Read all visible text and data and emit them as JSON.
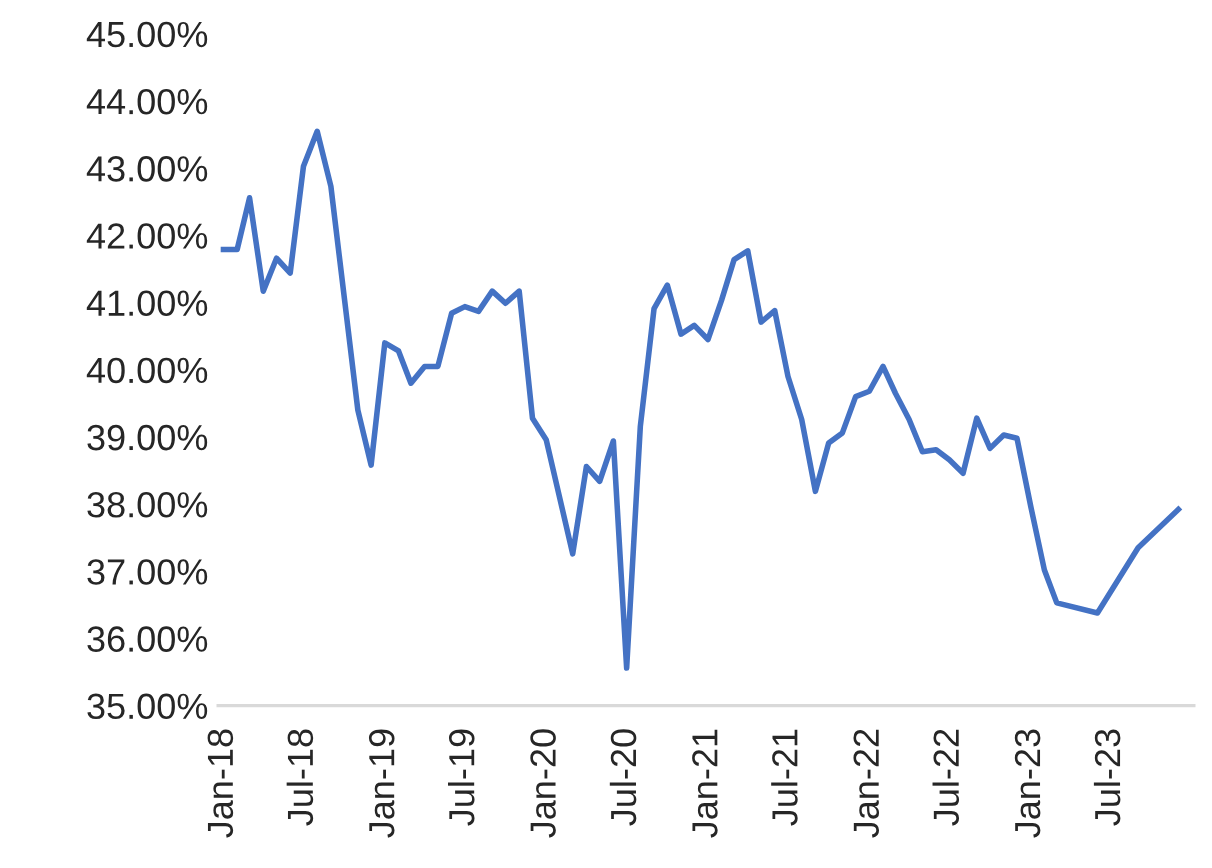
{
  "chart_data": {
    "type": "line",
    "color": "#4472c4",
    "x": [
      "2018-01",
      "2018-02",
      "2018-03",
      "2018-04",
      "2018-05",
      "2018-06",
      "2018-07",
      "2018-08",
      "2018-09",
      "2018-11",
      "2018-12",
      "2019-01",
      "2019-02",
      "2019-03",
      "2019-04",
      "2019-05",
      "2019-06",
      "2019-07",
      "2019-08",
      "2019-09",
      "2019-10",
      "2019-11",
      "2019-12",
      "2020-01",
      "2020-03",
      "2020-04",
      "2020-05",
      "2020-06",
      "2020-07",
      "2020-08",
      "2020-09",
      "2020-10",
      "2020-11",
      "2020-12",
      "2021-01",
      "2021-02",
      "2021-03",
      "2021-04",
      "2021-05",
      "2021-06",
      "2021-07",
      "2021-08",
      "2021-09",
      "2021-10",
      "2021-11",
      "2021-12",
      "2022-01",
      "2022-02",
      "2022-03",
      "2022-04",
      "2022-05",
      "2022-06",
      "2022-07",
      "2022-08",
      "2022-09",
      "2022-10",
      "2022-11",
      "2022-12",
      "2023-01",
      "2023-02",
      "2023-03",
      "2023-06",
      "2023-09",
      "2023-12"
    ],
    "values": [
      41.79,
      41.79,
      42.56,
      41.17,
      41.66,
      41.44,
      43.03,
      43.55,
      42.73,
      39.4,
      38.58,
      40.4,
      40.28,
      39.8,
      40.05,
      40.05,
      40.84,
      40.94,
      40.87,
      41.17,
      40.99,
      41.17,
      39.28,
      38.96,
      37.26,
      38.56,
      38.34,
      38.94,
      35.56,
      39.16,
      40.91,
      41.26,
      40.53,
      40.66,
      40.45,
      41.04,
      41.64,
      41.77,
      40.71,
      40.88,
      39.9,
      39.26,
      38.19,
      38.91,
      39.06,
      39.6,
      39.68,
      40.05,
      39.65,
      39.26,
      38.78,
      38.81,
      38.66,
      38.46,
      39.28,
      38.83,
      39.03,
      38.98,
      37.97,
      37.02,
      36.53,
      36.38,
      37.35,
      37.92
    ],
    "ylim": [
      35,
      45
    ],
    "yticks": [
      {
        "value": 35,
        "label": "35.00%"
      },
      {
        "value": 36,
        "label": "36.00%"
      },
      {
        "value": 37,
        "label": "37.00%"
      },
      {
        "value": 38,
        "label": "38.00%"
      },
      {
        "value": 39,
        "label": "39.00%"
      },
      {
        "value": 40,
        "label": "40.00%"
      },
      {
        "value": 41,
        "label": "41.00%"
      },
      {
        "value": 42,
        "label": "42.00%"
      },
      {
        "value": 43,
        "label": "43.00%"
      },
      {
        "value": 44,
        "label": "44.00%"
      },
      {
        "value": 45,
        "label": "45.00%"
      }
    ],
    "xlim": [
      "2017-12-20",
      "2024-01-05"
    ],
    "xticks": [
      {
        "value": "2018-01",
        "label": "Jan-18"
      },
      {
        "value": "2018-07",
        "label": "Jul-18"
      },
      {
        "value": "2019-01",
        "label": "Jan-19"
      },
      {
        "value": "2019-07",
        "label": "Jul-19"
      },
      {
        "value": "2020-01",
        "label": "Jan-20"
      },
      {
        "value": "2020-07",
        "label": "Jul-20"
      },
      {
        "value": "2021-01",
        "label": "Jan-21"
      },
      {
        "value": "2021-07",
        "label": "Jul-21"
      },
      {
        "value": "2022-01",
        "label": "Jan-22"
      },
      {
        "value": "2022-07",
        "label": "Jul-22"
      },
      {
        "value": "2023-01",
        "label": "Jan-23"
      },
      {
        "value": "2023-07",
        "label": "Jul-23"
      }
    ],
    "grid": false,
    "legend": false,
    "marker": "none",
    "line_style": "solid"
  }
}
